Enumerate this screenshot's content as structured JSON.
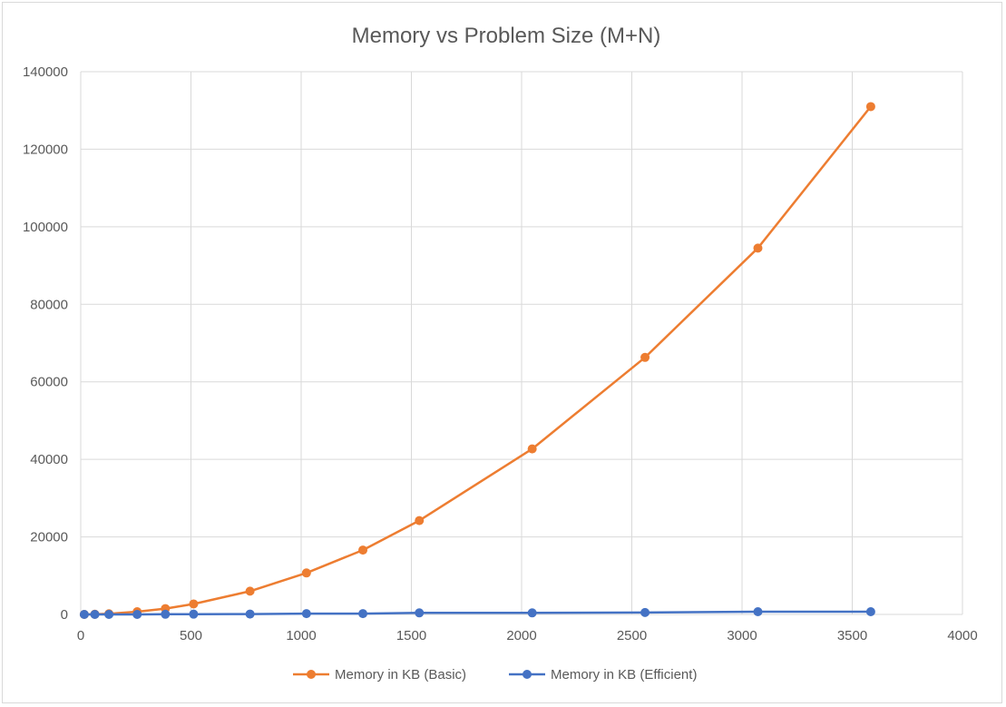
{
  "chart_data": {
    "type": "line",
    "title": "Memory vs Problem Size (M+N)",
    "xlabel": "",
    "ylabel": "",
    "xlim": [
      0,
      4000
    ],
    "ylim": [
      0,
      140000
    ],
    "x_ticks": [
      0,
      500,
      1000,
      1500,
      2000,
      2500,
      3000,
      3500,
      4000
    ],
    "y_ticks": [
      0,
      20000,
      40000,
      60000,
      80000,
      100000,
      120000,
      140000
    ],
    "grid": true,
    "legend_position": "bottom",
    "series": [
      {
        "name": "Memory in KB (Basic)",
        "color": "#ED7D31",
        "x": [
          16,
          64,
          128,
          256,
          384,
          512,
          768,
          1024,
          1280,
          1536,
          2048,
          2560,
          3072,
          3584
        ],
        "y": [
          0,
          50,
          170,
          700,
          1500,
          2700,
          6000,
          10700,
          16600,
          24200,
          42700,
          66300,
          94500,
          131000
        ]
      },
      {
        "name": "Memory in KB (Efficient)",
        "color": "#4472C4",
        "x": [
          16,
          64,
          128,
          256,
          384,
          512,
          768,
          1024,
          1280,
          1536,
          2048,
          2560,
          3072,
          3584
        ],
        "y": [
          0,
          0,
          0,
          0,
          50,
          80,
          100,
          200,
          200,
          400,
          400,
          500,
          700,
          700
        ]
      }
    ]
  }
}
